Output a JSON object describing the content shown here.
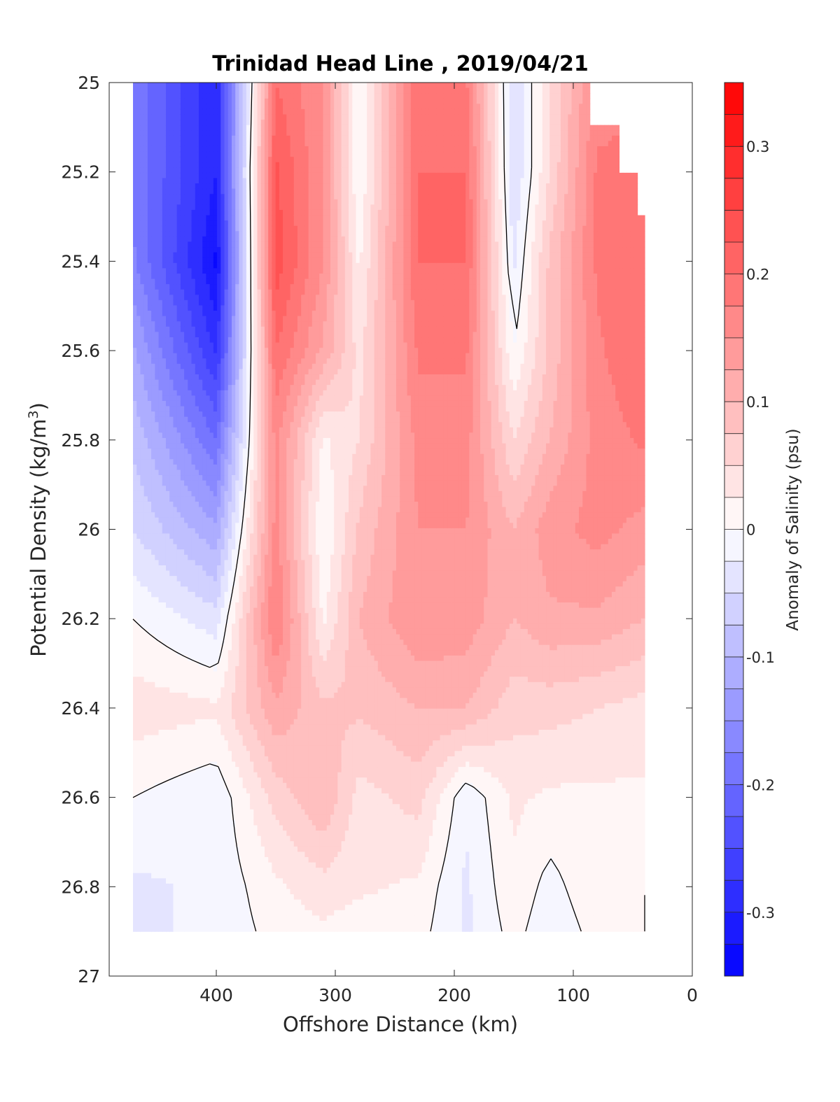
{
  "chart_data": {
    "type": "heatmap",
    "subtype": "filled-contour section",
    "title": "Trinidad Head Line , 2019/04/21",
    "xlabel": "Offshore Distance (km)",
    "ylabel_main": "Potential Density (kg/m",
    "ylabel_sup": "3",
    "ylabel_end": ")",
    "colorbar_label": "Anomaly of Salinity (psu)",
    "x_reversed": true,
    "xlim": [
      0,
      490
    ],
    "ylim": [
      25,
      27
    ],
    "y_reversed": true,
    "x_ticks": [
      400,
      300,
      200,
      100,
      0
    ],
    "x_tick_labels": [
      "400",
      "300",
      "200",
      "100",
      "0"
    ],
    "y_ticks": [
      25,
      25.2,
      25.4,
      25.6,
      25.8,
      26,
      26.2,
      26.4,
      26.6,
      26.8,
      27
    ],
    "y_tick_labels": [
      "25",
      "25.2",
      "25.4",
      "25.6",
      "25.8",
      "26",
      "26.2",
      "26.4",
      "26.6",
      "26.8",
      "27"
    ],
    "clim": [
      -0.35,
      0.35
    ],
    "contour_levels_count": 28,
    "colorbar_ticks": [
      0.3,
      0.2,
      0.1,
      0,
      -0.1,
      -0.2,
      -0.3
    ],
    "colorbar_tick_labels": [
      "0.3",
      "0.2",
      "0.1",
      "0",
      "-0.1",
      "-0.2",
      "-0.3"
    ],
    "zero_contour_line_color": "#000000",
    "colormap": {
      "negative": "#0000ff",
      "zero": "#ffffff",
      "positive": "#ff0000"
    },
    "grid": false,
    "columns_km": [
      470,
      400,
      350,
      310,
      280,
      230,
      190,
      150,
      120,
      80,
      40
    ],
    "rows_density": [
      25.0,
      25.2,
      25.4,
      25.6,
      25.8,
      26.0,
      26.2,
      26.4,
      26.6,
      26.8,
      26.9
    ],
    "salinity_anomaly": [
      [
        -0.18,
        -0.3,
        0.2,
        0.15,
        0.0,
        0.2,
        0.18,
        -0.05,
        0.05,
        0.16,
        null
      ],
      [
        -0.18,
        -0.3,
        0.23,
        0.15,
        0.0,
        0.2,
        0.2,
        -0.05,
        0.05,
        0.18,
        0.18
      ],
      [
        -0.17,
        -0.33,
        0.24,
        0.15,
        0.02,
        0.2,
        0.2,
        -0.03,
        0.08,
        0.18,
        0.2
      ],
      [
        -0.12,
        -0.28,
        0.2,
        0.12,
        0.04,
        0.18,
        0.18,
        0.0,
        0.08,
        0.17,
        0.2
      ],
      [
        -0.08,
        -0.2,
        0.16,
        0.02,
        0.05,
        0.16,
        0.16,
        0.05,
        0.1,
        0.16,
        0.18
      ],
      [
        -0.05,
        -0.12,
        0.16,
        0.0,
        0.08,
        0.15,
        0.15,
        0.1,
        0.14,
        0.16,
        0.14
      ],
      [
        0.0,
        -0.04,
        0.18,
        0.02,
        0.1,
        0.15,
        0.14,
        0.1,
        0.12,
        0.12,
        0.1
      ],
      [
        0.04,
        0.03,
        0.12,
        0.08,
        0.08,
        0.1,
        0.1,
        0.06,
        0.06,
        0.05,
        0.04
      ],
      [
        0.0,
        -0.02,
        0.06,
        0.1,
        0.04,
        0.06,
        -0.02,
        0.03,
        0.02,
        0.02,
        0.02
      ],
      [
        -0.03,
        -0.02,
        0.02,
        0.04,
        0.03,
        0.02,
        -0.03,
        0.02,
        -0.01,
        0.02,
        0.0
      ],
      [
        -0.03,
        -0.02,
        0.01,
        0.02,
        0.01,
        0.01,
        -0.03,
        0.01,
        -0.02,
        0.01,
        0.0
      ]
    ]
  }
}
